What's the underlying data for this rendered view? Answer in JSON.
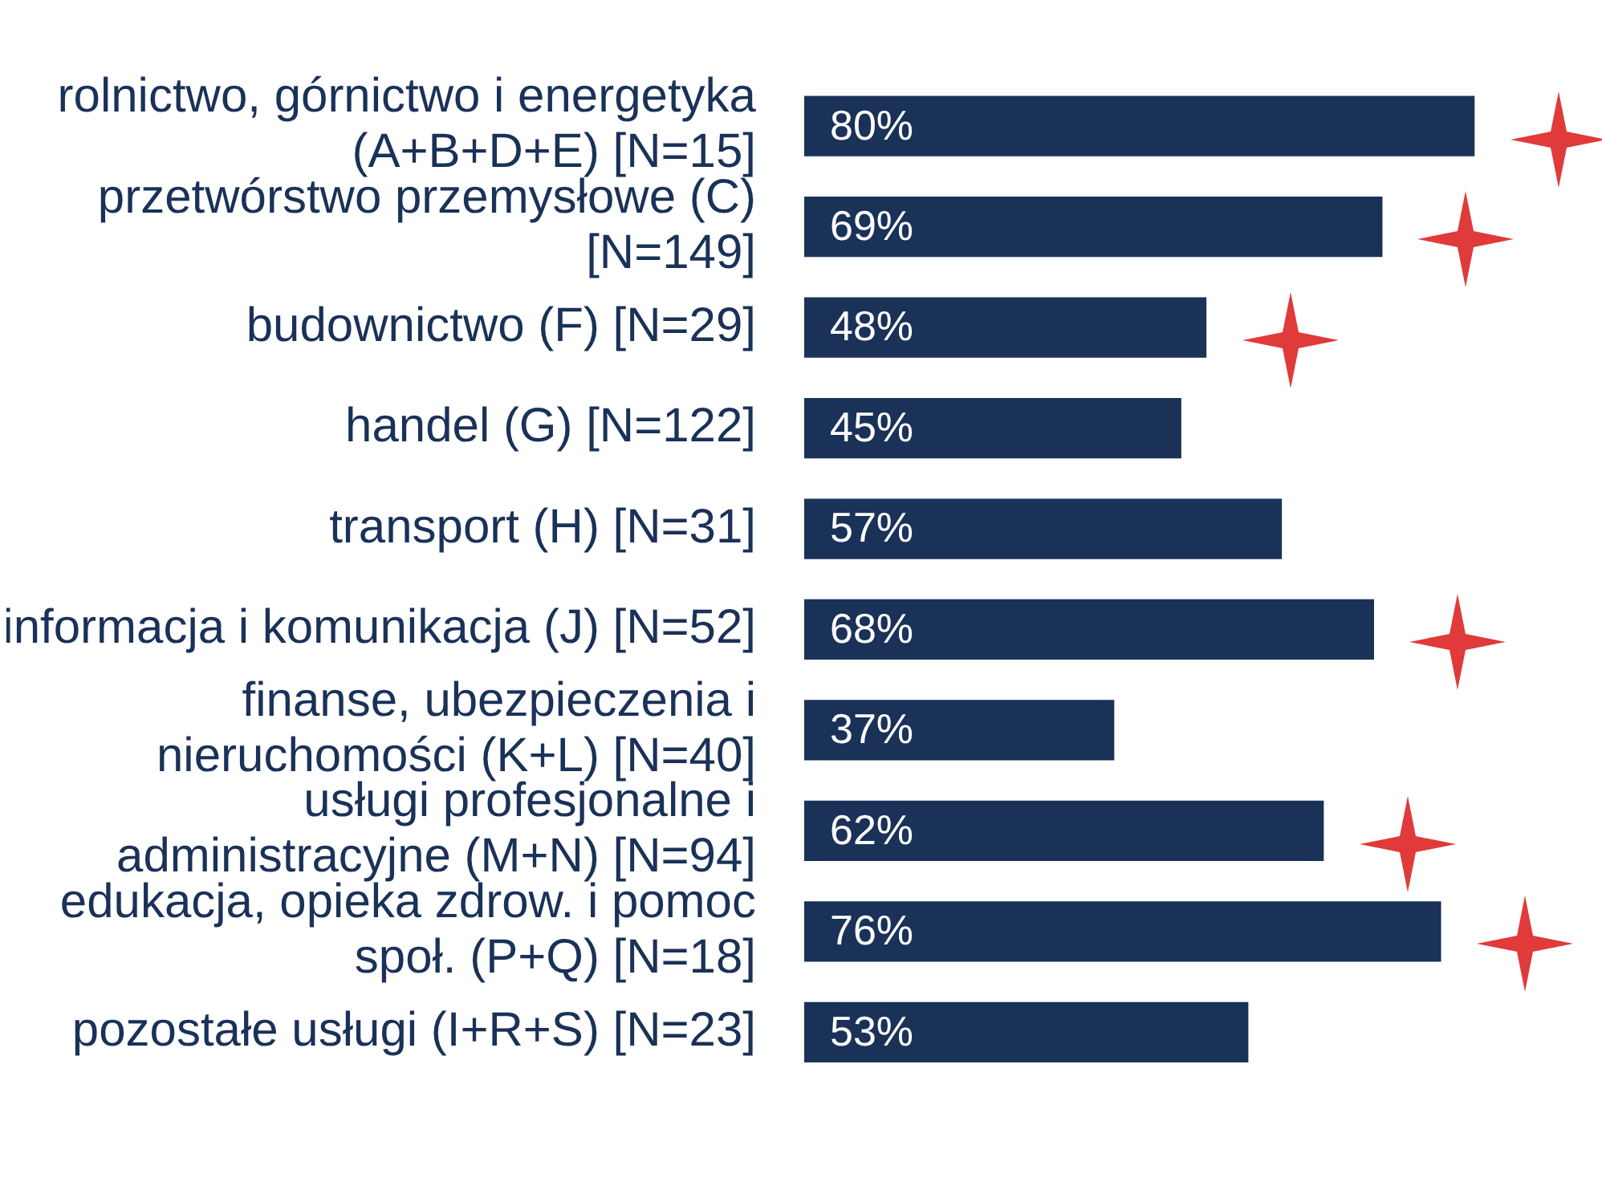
{
  "chart_data": {
    "type": "bar",
    "orientation": "horizontal",
    "data_labels": true,
    "categories": [
      "rolnictwo, górnictwo i energetyka (A+B+D+E) [N=15]",
      "przetwórstwo przemysłowe (C) [N=149]",
      "budownictwo (F) [N=29]",
      "handel (G) [N=122]",
      "transport (H) [N=31]",
      "informacja i komunikacja (J) [N=52]",
      "finanse, ubezpieczenia i nieruchomości (K+L) [N=40]",
      "usługi profesjonalne i administracyjne (M+N) [N=94]",
      "edukacja, opieka zdrow. i pomoc społ. (P+Q) [N=18]",
      "pozostałe usługi (I+R+S) [N=23]"
    ],
    "values": [
      80,
      69,
      48,
      45,
      57,
      68,
      37,
      62,
      76,
      53
    ],
    "value_labels": [
      "80%",
      "69%",
      "48%",
      "45%",
      "57%",
      "68%",
      "37%",
      "62%",
      "76%",
      "53%"
    ],
    "color": "#1a3158",
    "legend": false,
    "grid": false
  }
}
